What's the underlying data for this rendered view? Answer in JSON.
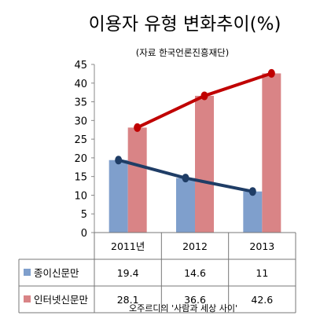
{
  "chart_data": {
    "type": "bar",
    "title": "이용자 유형 변화추이(%)",
    "subtitle": "(자료 한국언론진흥재단)",
    "categories": [
      "2011년",
      "2012",
      "2013"
    ],
    "series": [
      {
        "name": "종이신문만",
        "values": [
          19.4,
          14.6,
          11
        ],
        "color": "#7f9fcc",
        "line_color": "#1f3d66"
      },
      {
        "name": "인터넷신문만",
        "values": [
          28.1,
          36.6,
          42.6
        ],
        "color": "#d98486",
        "line_color": "#c00000"
      }
    ],
    "ylim": [
      0,
      45
    ],
    "yticks": [
      "0",
      "5",
      "10",
      "15",
      "20",
      "25",
      "30",
      "35",
      "40",
      "45"
    ],
    "grid": false,
    "legend": "data-table",
    "table_values": [
      [
        "19.4",
        "14.6",
        "11"
      ],
      [
        "28.1",
        "36.6",
        "42.6"
      ]
    ],
    "footer": "오주르디의 '사람과 세상 사이'"
  }
}
